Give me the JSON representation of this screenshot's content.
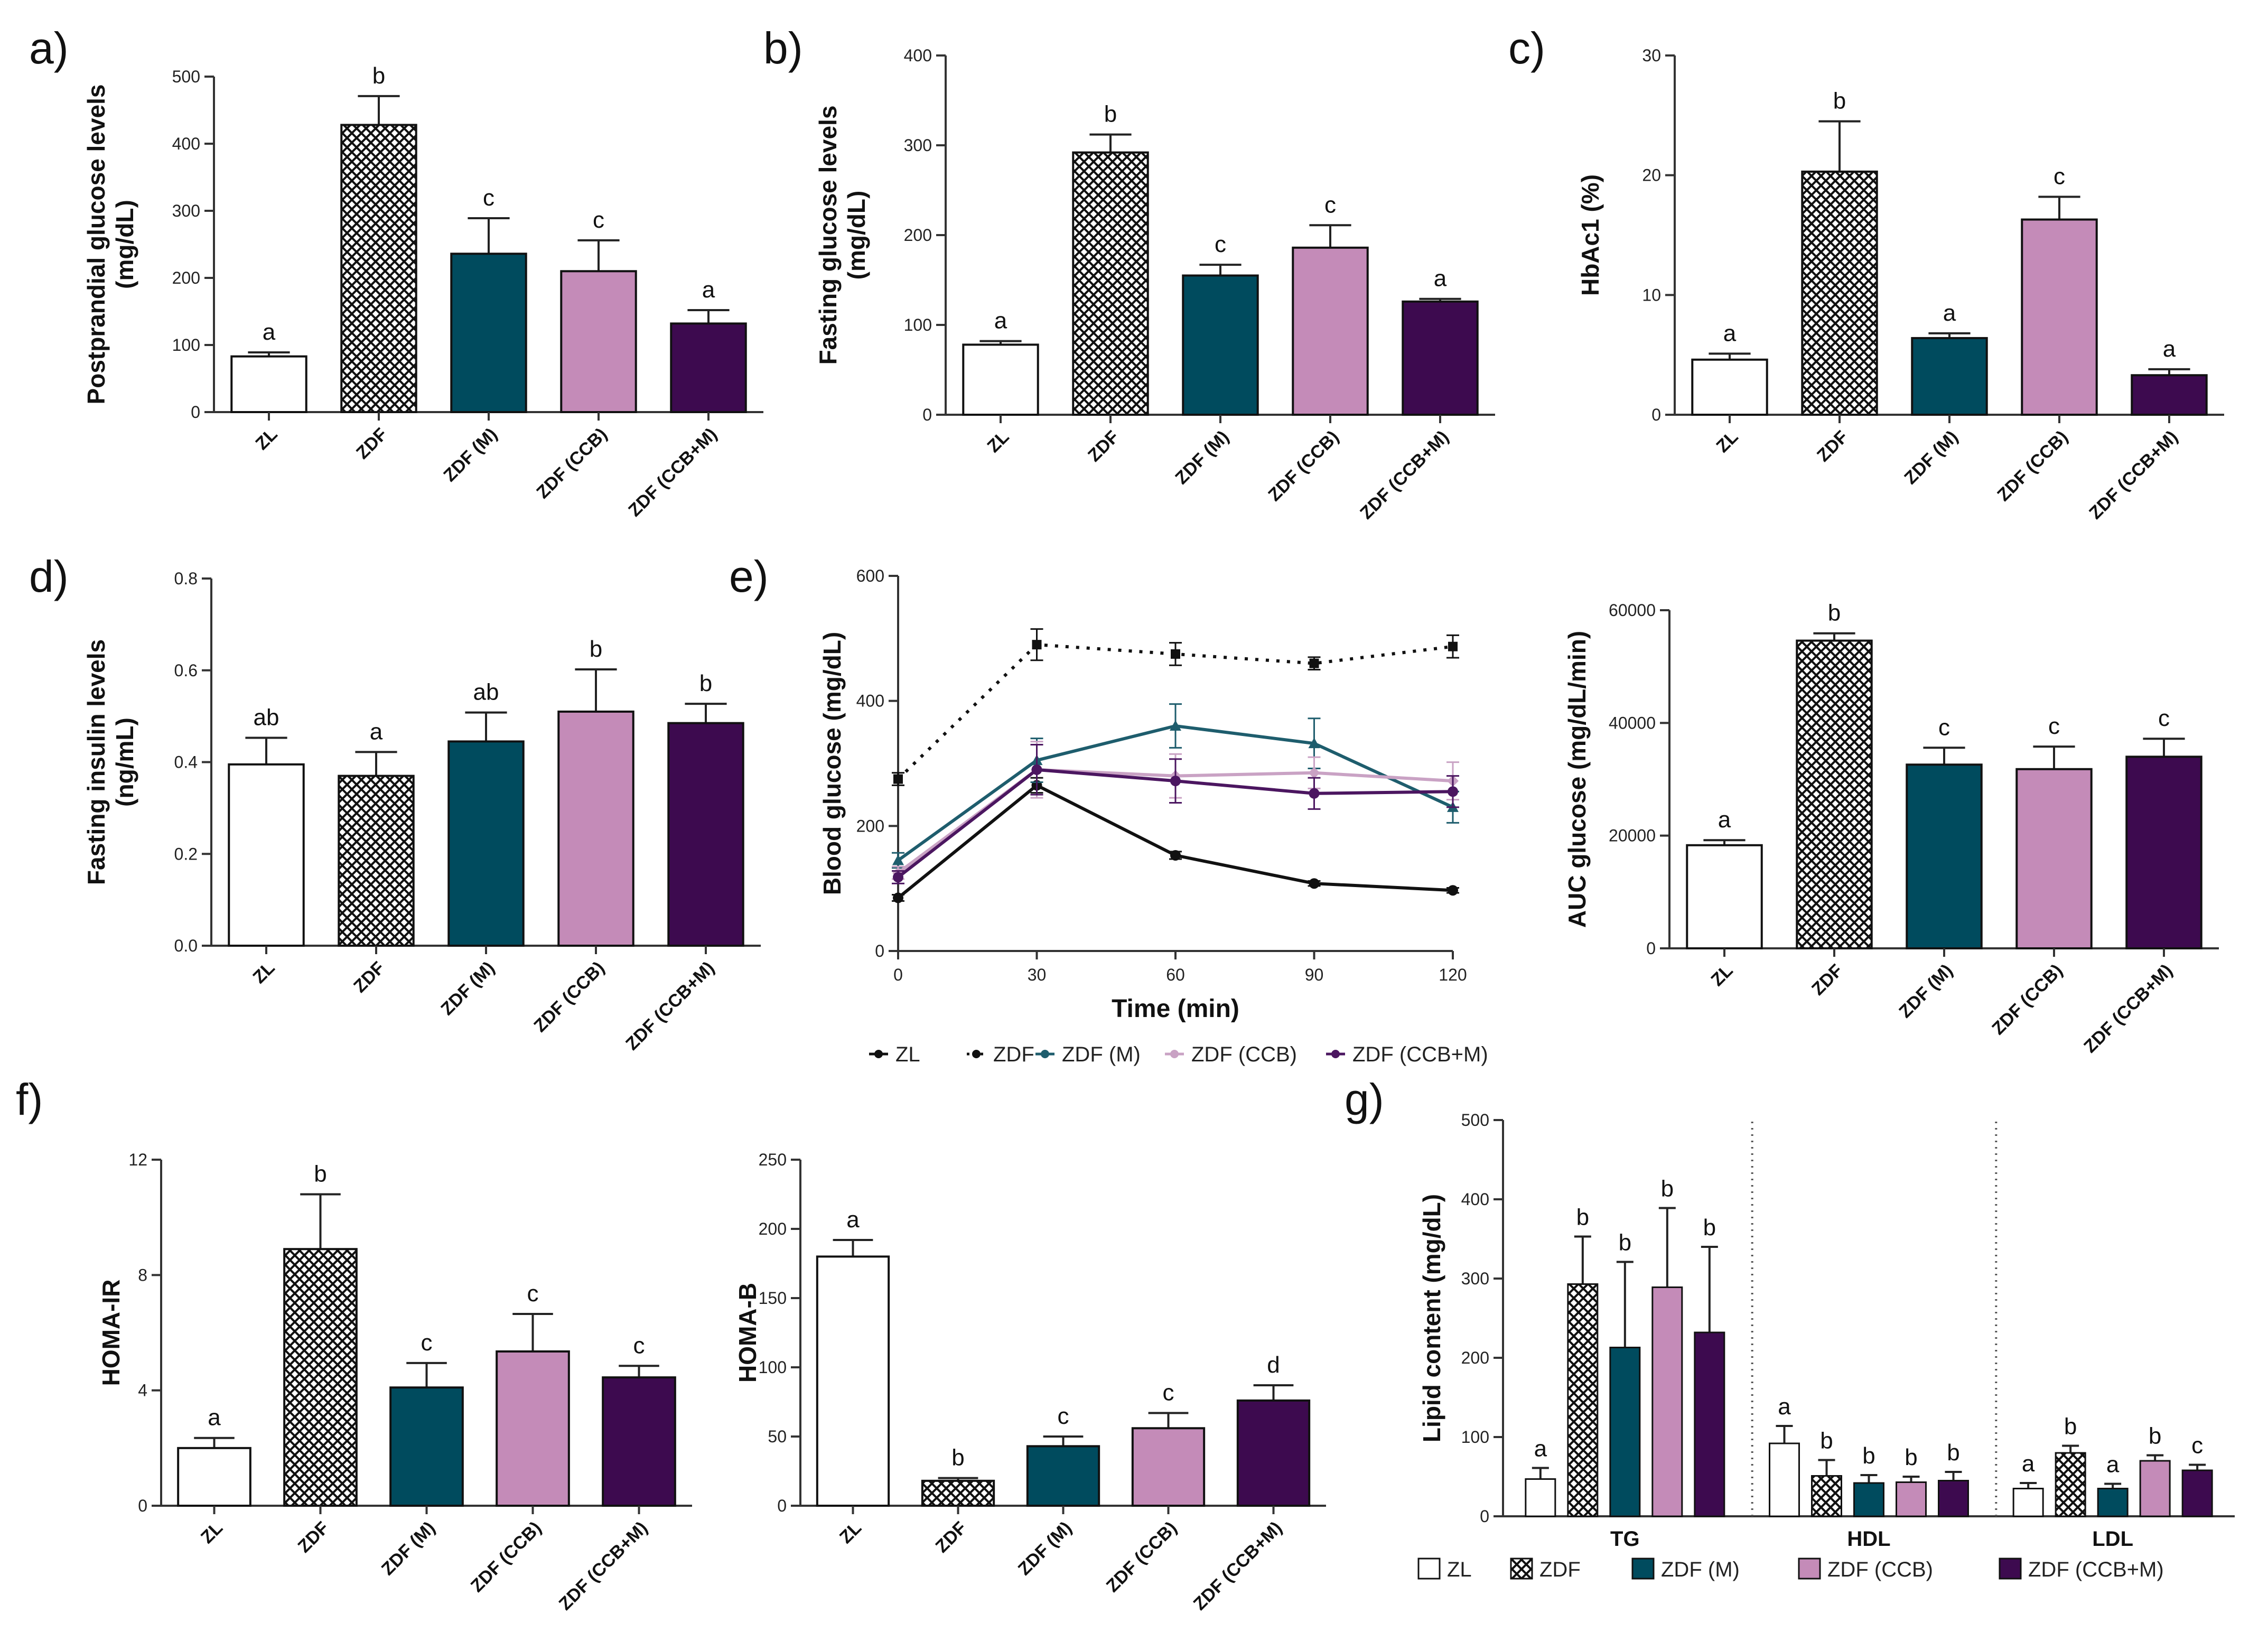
{
  "colors": {
    "ZL": "#ffffff",
    "ZDF": "#e8e8e8",
    "ZDF (M)": "#004b5e",
    "ZDF (CCB)": "#c48bb8",
    "ZDF (CCB+M)": "#3d0a4f"
  },
  "legend_groups": [
    "ZL",
    "ZDF",
    "ZDF (M)",
    "ZDF (CCB)",
    "ZDF (CCB+M)"
  ],
  "chart_data": [
    {
      "id": "a",
      "panel_label": "a)",
      "type": "bar",
      "ylabel_lines": [
        "Postprandial glucose levels",
        "(mg/dL)"
      ],
      "categories": [
        "ZL",
        "ZDF",
        "ZDF (M)",
        "ZDF (CCB)",
        "ZDF (CCB+M)"
      ],
      "values": [
        83,
        428,
        236,
        210,
        132
      ],
      "errors": [
        6,
        43,
        53,
        46,
        20
      ],
      "letters": [
        "a",
        "b",
        "c",
        "c",
        "a"
      ],
      "ylim": [
        0,
        500
      ],
      "yticks": [
        "0",
        "100",
        "200",
        "300",
        "400",
        "500"
      ]
    },
    {
      "id": "b",
      "panel_label": "b)",
      "type": "bar",
      "ylabel_lines": [
        "Fasting glucose levels",
        "(mg/dL)"
      ],
      "categories": [
        "ZL",
        "ZDF",
        "ZDF (M)",
        "ZDF (CCB)",
        "ZDF (CCB+M)"
      ],
      "values": [
        78,
        292,
        155,
        186,
        126
      ],
      "errors": [
        4,
        20,
        12,
        25,
        3
      ],
      "letters": [
        "a",
        "b",
        "c",
        "c",
        "a"
      ],
      "ylim": [
        0,
        400
      ],
      "yticks": [
        "0",
        "100",
        "200",
        "300",
        "400"
      ]
    },
    {
      "id": "c",
      "panel_label": "c)",
      "type": "bar",
      "ylabel_lines": [
        "HbAc1 (%)"
      ],
      "categories": [
        "ZL",
        "ZDF",
        "ZDF (M)",
        "ZDF (CCB)",
        "ZDF (CCB+M)"
      ],
      "values": [
        4.6,
        20.3,
        6.4,
        16.3,
        3.3
      ],
      "errors": [
        0.5,
        4.2,
        0.4,
        1.9,
        0.5
      ],
      "letters": [
        "a",
        "b",
        "a",
        "c",
        "a"
      ],
      "ylim": [
        0,
        30
      ],
      "yticks": [
        "0",
        "10",
        "20",
        "30"
      ]
    },
    {
      "id": "d",
      "panel_label": "d)",
      "type": "bar",
      "ylabel_lines": [
        "Fasting insulin levels",
        "(ng/mL)"
      ],
      "categories": [
        "ZL",
        "ZDF",
        "ZDF (M)",
        "ZDF (CCB)",
        "ZDF (CCB+M)"
      ],
      "values": [
        0.395,
        0.37,
        0.445,
        0.51,
        0.485
      ],
      "errors": [
        0.058,
        0.052,
        0.063,
        0.092,
        0.042
      ],
      "letters": [
        "ab",
        "a",
        "ab",
        "b",
        "b"
      ],
      "ylim": [
        0,
        0.8
      ],
      "yticks": [
        "0.0",
        "0.2",
        "0.4",
        "0.6",
        "0.8"
      ]
    },
    {
      "id": "e1",
      "panel_label": "e)",
      "type": "line",
      "ylabel_lines": [
        "Blood glucose (mg/dL)"
      ],
      "xlabel": "Time (min)",
      "x": [
        0,
        30,
        60,
        90,
        120
      ],
      "xticks": [
        "0",
        "30",
        "60",
        "90",
        "120"
      ],
      "ylim": [
        0,
        600
      ],
      "yticks": [
        "0",
        "200",
        "400",
        "600"
      ],
      "series": [
        {
          "name": "ZL",
          "values": [
            85,
            265,
            153,
            108,
            97
          ],
          "errors": [
            5,
            12,
            6,
            4,
            4
          ]
        },
        {
          "name": "ZDF",
          "values": [
            275,
            490,
            475,
            460,
            487
          ],
          "errors": [
            10,
            25,
            18,
            10,
            18
          ]
        },
        {
          "name": "ZDF (M)",
          "values": [
            145,
            305,
            360,
            332,
            230
          ],
          "errors": [
            12,
            35,
            35,
            40,
            25
          ]
        },
        {
          "name": "ZDF (CCB)",
          "values": [
            125,
            290,
            280,
            285,
            272
          ],
          "errors": [
            10,
            45,
            35,
            25,
            30
          ]
        },
        {
          "name": "ZDF (CCB+M)",
          "values": [
            118,
            290,
            272,
            252,
            255
          ],
          "errors": [
            10,
            40,
            35,
            25,
            25
          ]
        }
      ],
      "legend_labels": [
        "ZL",
        "ZDF",
        "ZDF (M)",
        "ZDF (CCB)",
        "ZDF (CCB+M)"
      ]
    },
    {
      "id": "e2",
      "panel_label": "",
      "type": "bar",
      "ylabel_lines": [
        "AUC glucose (mg/dL/min)"
      ],
      "categories": [
        "ZL",
        "ZDF",
        "ZDF (M)",
        "ZDF (CCB)",
        "ZDF (CCB+M)"
      ],
      "values": [
        18300,
        54600,
        32600,
        31800,
        34000
      ],
      "errors": [
        900,
        1300,
        3000,
        4000,
        3200
      ],
      "letters": [
        "a",
        "b",
        "c",
        "c",
        "c"
      ],
      "ylim": [
        0,
        60000
      ],
      "yticks": [
        "0",
        "20000",
        "40000",
        "60000"
      ]
    },
    {
      "id": "f1",
      "panel_label": "f)",
      "type": "bar",
      "ylabel_lines": [
        "HOMA-IR"
      ],
      "categories": [
        "ZL",
        "ZDF",
        "ZDF (M)",
        "ZDF (CCB)",
        "ZDF (CCB+M)"
      ],
      "values": [
        2.0,
        8.9,
        4.1,
        5.35,
        4.45
      ],
      "errors": [
        0.35,
        1.9,
        0.85,
        1.3,
        0.4
      ],
      "letters": [
        "a",
        "b",
        "c",
        "c",
        "c"
      ],
      "ylim": [
        0,
        12
      ],
      "yticks": [
        "0",
        "4",
        "8",
        "12"
      ]
    },
    {
      "id": "f2",
      "panel_label": "",
      "type": "bar",
      "ylabel_lines": [
        "HOMA-B"
      ],
      "categories": [
        "ZL",
        "ZDF",
        "ZDF (M)",
        "ZDF (CCB)",
        "ZDF (CCB+M)"
      ],
      "values": [
        180,
        18,
        43,
        56,
        76
      ],
      "errors": [
        12,
        2,
        7,
        11,
        11
      ],
      "letters": [
        "a",
        "b",
        "c",
        "c",
        "d"
      ],
      "ylim": [
        0,
        250
      ],
      "yticks": [
        "0",
        "50",
        "100",
        "150",
        "200",
        "250"
      ]
    },
    {
      "id": "g",
      "panel_label": "g)",
      "type": "grouped-bar",
      "ylabel_lines": [
        "Lipid content (mg/dL)"
      ],
      "categories": [
        "TG",
        "HDL",
        "LDL"
      ],
      "ylim": [
        0,
        500
      ],
      "yticks": [
        "0",
        "100",
        "200",
        "300",
        "400",
        "500"
      ],
      "series": [
        {
          "name": "ZL",
          "values": [
            47,
            92,
            35
          ],
          "errors": [
            14,
            22,
            7
          ],
          "letters": [
            "a",
            "a",
            "a"
          ]
        },
        {
          "name": "ZDF",
          "values": [
            293,
            51,
            80
          ],
          "errors": [
            60,
            20,
            9
          ],
          "letters": [
            "b",
            "b",
            "b"
          ]
        },
        {
          "name": "ZDF (M)",
          "values": [
            213,
            42,
            35
          ],
          "errors": [
            108,
            10,
            6
          ],
          "letters": [
            "b",
            "b",
            "a"
          ]
        },
        {
          "name": "ZDF (CCB)",
          "values": [
            289,
            43,
            70
          ],
          "errors": [
            100,
            7,
            7
          ],
          "letters": [
            "b",
            "b",
            "b"
          ]
        },
        {
          "name": "ZDF (CCB+M)",
          "values": [
            232,
            45,
            58
          ],
          "errors": [
            108,
            11,
            7
          ],
          "letters": [
            "b",
            "b",
            "c"
          ]
        }
      ],
      "legend_labels": [
        "ZL",
        "ZDF",
        "ZDF (M)",
        "ZDF (CCB)",
        "ZDF (CCB+M)"
      ]
    }
  ]
}
